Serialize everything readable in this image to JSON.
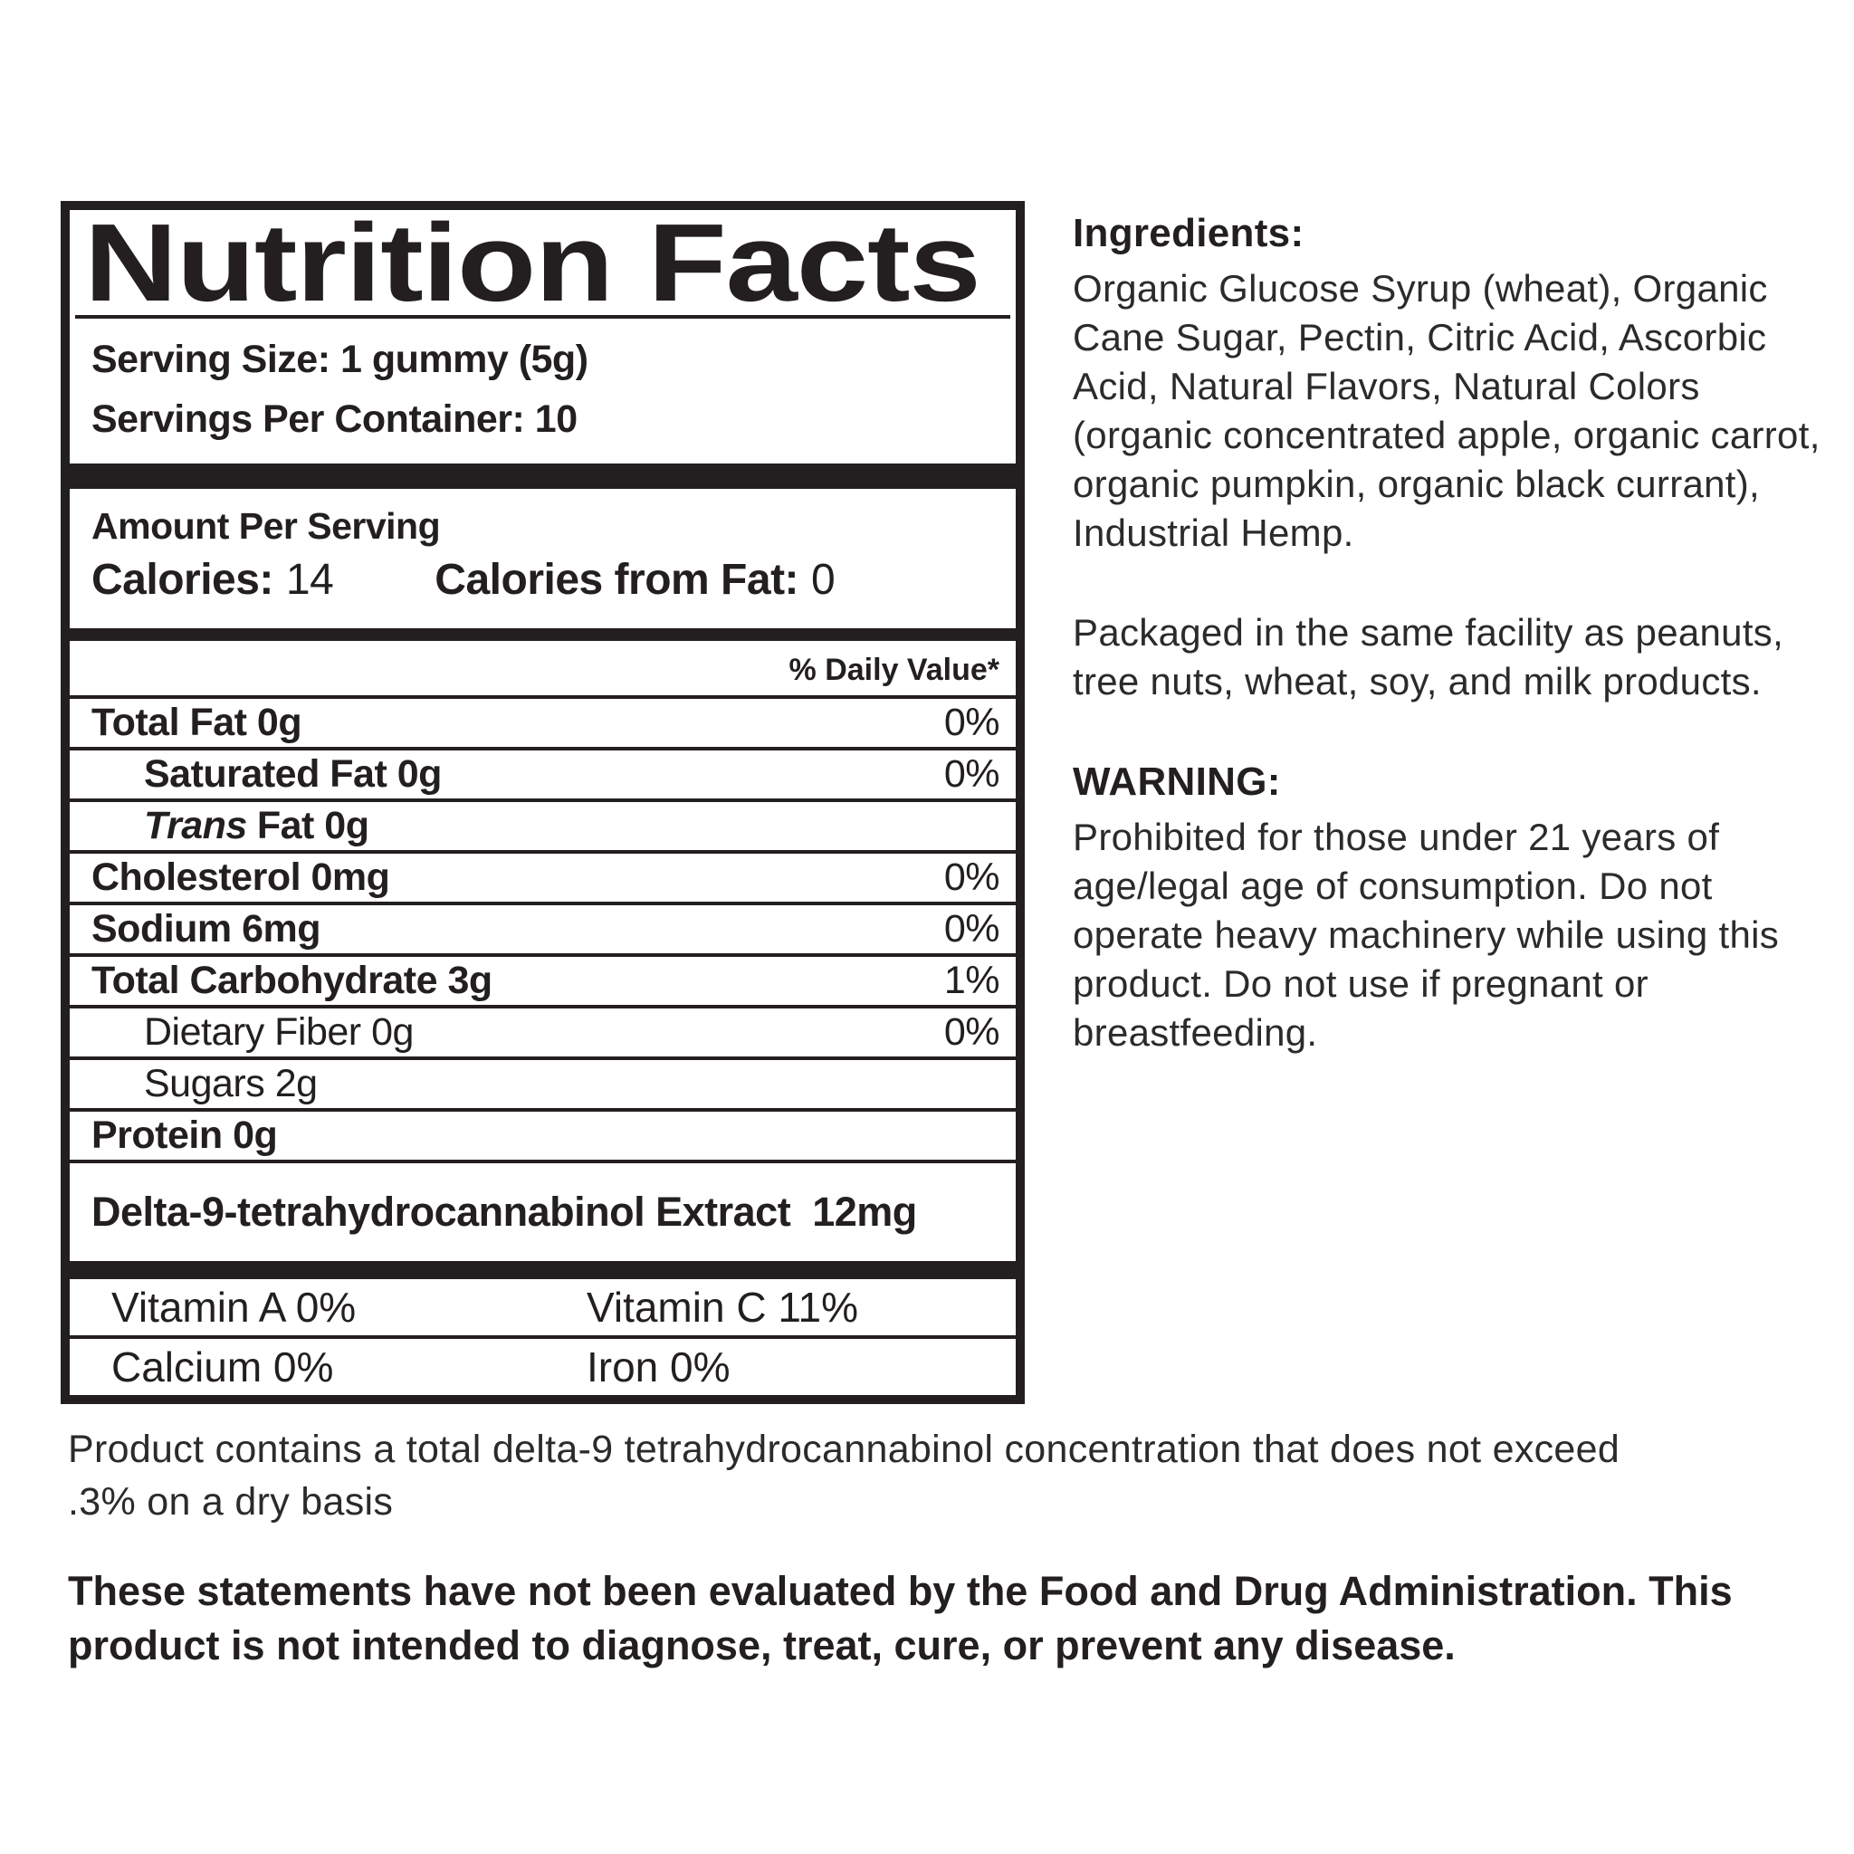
{
  "panel": {
    "title": "Nutrition Facts",
    "serving_size": "Serving Size: 1 gummy (5g)",
    "servings_per_container": "Servings Per Container: 10",
    "amount_per_serving": "Amount Per Serving",
    "calories_label": "Calories:",
    "calories_value": "14",
    "calories_from_fat_label": "Calories from Fat:",
    "calories_from_fat_value": "0",
    "daily_value_header": "% Daily Value*",
    "rows": [
      {
        "label": "Total Fat 0g",
        "value": "0%"
      },
      {
        "label": "Saturated Fat 0g",
        "value": "0%"
      },
      {
        "label_italic": "Trans",
        "label_rest": "Fat 0g",
        "value": ""
      },
      {
        "label": "Cholesterol 0mg",
        "value": "0%"
      },
      {
        "label": "Sodium 6mg",
        "value": "0%"
      },
      {
        "label": "Total Carbohydrate 3g",
        "value": "1%"
      },
      {
        "label": "Dietary Fiber 0g",
        "value": "0%"
      },
      {
        "label": "Sugars 2g",
        "value": ""
      },
      {
        "label": "Protein 0g",
        "value": ""
      }
    ],
    "extract_label": "Delta-9-tetrahydrocannabinol Extract",
    "extract_value": "12mg",
    "vitamins": {
      "vitamin_a": "Vitamin A 0%",
      "vitamin_c": "Vitamin C 11%",
      "calcium": "Calcium 0%",
      "iron": "Iron 0%"
    }
  },
  "right_column": {
    "ingredients_heading": "Ingredients:",
    "ingredients_text": "Organic Glucose Syrup (wheat), Organic Cane Sugar, Pectin, Citric Acid, Ascorbic Acid, Natural Flavors, Natural Colors (organic concentrated apple, organic carrot, organic pumpkin, organic black currant), Industrial Hemp.",
    "allergen_text": "Packaged in the same facility as peanuts, tree nuts, wheat, soy, and milk products.",
    "warning_heading": "WARNING:",
    "warning_text": "Prohibited for those under 21 years of age/legal age of consumption. Do not operate heavy machinery while using this product. Do not use if pregnant or breastfeeding."
  },
  "footer": {
    "concentration_text": "Product contains a total delta-9 tetrahydrocannabinol concentration that does not exceed .3% on a dry basis",
    "fda_text": "These statements have not been evaluated by the Food and Drug Administration. This product is not intended to diagnose, treat, cure, or prevent any disease."
  }
}
